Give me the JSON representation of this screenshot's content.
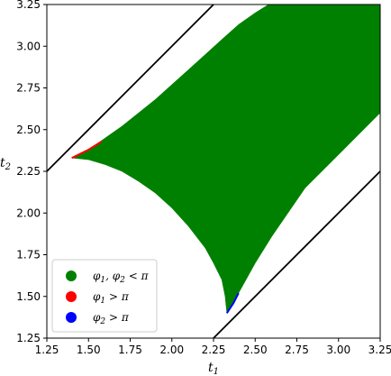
{
  "chart_data": {
    "type": "area",
    "xlabel": "t",
    "xlabel_sub": "1",
    "ylabel": "t",
    "ylabel_sub": "2",
    "xlim": [
      1.25,
      3.25
    ],
    "ylim": [
      1.25,
      3.25
    ],
    "xticks": [
      "1.25",
      "1.50",
      "1.75",
      "2.00",
      "2.25",
      "2.50",
      "2.75",
      "3.00",
      "3.25"
    ],
    "yticks": [
      "1.25",
      "1.50",
      "1.75",
      "2.00",
      "2.25",
      "2.50",
      "2.75",
      "3.00",
      "3.25"
    ],
    "grid": false,
    "legend_position": "lower-left",
    "lines": [
      {
        "x": [
          1.25,
          2.25
        ],
        "y": [
          2.25,
          3.25
        ],
        "color": "#000000"
      },
      {
        "x": [
          2.25,
          3.25
        ],
        "y": [
          1.25,
          2.25
        ],
        "color": "#000000"
      }
    ],
    "region": {
      "color": "#008000",
      "upper_boundary": {
        "x": [
          1.4,
          1.5,
          1.6,
          1.7,
          1.8,
          1.9,
          2.0,
          2.1,
          2.2,
          2.3,
          2.4,
          2.5,
          2.58,
          2.64
        ],
        "y": [
          2.33,
          2.38,
          2.45,
          2.52,
          2.6,
          2.68,
          2.77,
          2.86,
          2.95,
          3.04,
          3.13,
          3.2,
          3.25,
          3.25
        ]
      },
      "right_boundary": {
        "x": [
          3.25,
          3.0,
          2.8,
          2.6,
          2.5,
          2.4,
          2.33
        ],
        "y": [
          2.6,
          2.35,
          2.15,
          1.86,
          1.7,
          1.52,
          1.4
        ]
      },
      "lower_boundary": {
        "x": [
          2.33,
          2.32,
          2.3,
          2.25,
          2.2,
          2.1,
          2.0,
          1.9,
          1.8,
          1.7,
          1.6,
          1.5,
          1.4
        ],
        "y": [
          1.4,
          1.5,
          1.6,
          1.7,
          1.79,
          1.92,
          2.03,
          2.12,
          2.19,
          2.25,
          2.29,
          2.32,
          2.33
        ]
      }
    },
    "edge_slivers": [
      {
        "color": "#ff0000",
        "x": [
          1.4,
          1.5,
          1.58
        ],
        "y": [
          2.33,
          2.38,
          2.43
        ]
      },
      {
        "color": "#0000ff",
        "x": [
          2.33,
          2.37,
          2.4
        ],
        "y": [
          1.4,
          1.46,
          1.52
        ]
      }
    ],
    "legend": [
      {
        "label_main": "φ",
        "label_sub1": "1",
        "label_mid": ", φ",
        "label_sub2": "2",
        "label_rel": " < π",
        "color": "#008000"
      },
      {
        "label_main": "φ",
        "label_sub1": "1",
        "label_mid": "",
        "label_sub2": "",
        "label_rel": " > π",
        "color": "#ff0000"
      },
      {
        "label_main": "φ",
        "label_sub1": "2",
        "label_mid": "",
        "label_sub2": "",
        "label_rel": " > π",
        "color": "#0000ff"
      }
    ]
  }
}
